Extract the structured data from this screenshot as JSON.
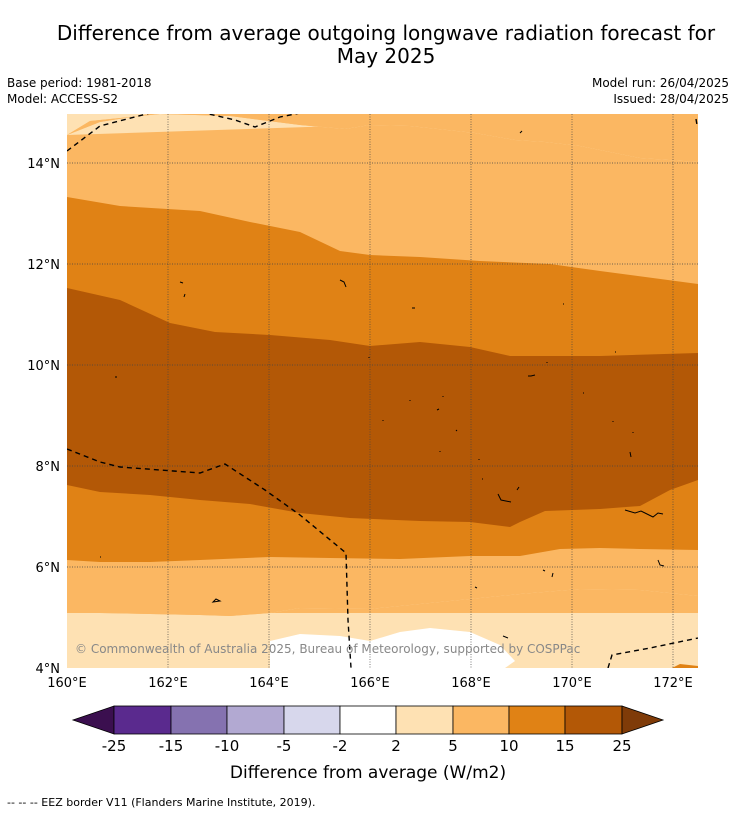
{
  "header": {
    "title_line1": "Difference from average outgoing longwave radiation forecast for",
    "title_line2": "May 2025",
    "base_period": "Base period: 1981-2018",
    "model": "Model: ACCESS-S2",
    "model_run": "Model run: 26/04/2025",
    "issued": "Issued: 28/04/2025"
  },
  "map": {
    "lon_labels": [
      "160°E",
      "162°E",
      "164°E",
      "166°E",
      "168°E",
      "170°E",
      "172°E"
    ],
    "lat_labels": [
      "14°N",
      "12°N",
      "10°N",
      "8°N",
      "6°N",
      "4°N"
    ],
    "lon_range": [
      160,
      172.5
    ],
    "lat_range": [
      4,
      15
    ],
    "copyright": "© Commonwealth of Australia 2025, Bureau of Meteorology, supported by COSPPac"
  },
  "colorbar": {
    "tick_labels": [
      "-25",
      "-15",
      "-10",
      "-5",
      "-2",
      "2",
      "5",
      "10",
      "15",
      "25"
    ],
    "label": "Difference from average (W/m2)",
    "colors": [
      "#3b0f4f",
      "#5a2a8e",
      "#8572b0",
      "#b2a9d2",
      "#d7d7ec",
      "#ffffff",
      "#fee1b3",
      "#fbb762",
      "#e08215",
      "#b35806",
      "#7f3b08"
    ]
  },
  "footer": {
    "legend_line": "-- -- -- EEZ border V11 (Flanders Marine Institute, 2019)."
  }
}
